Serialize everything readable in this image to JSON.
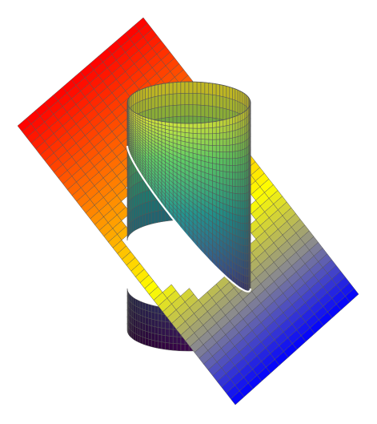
{
  "chart_data": {
    "type": "surface3d",
    "title": "",
    "xlabel": "",
    "ylabel": "",
    "zlabel": "",
    "axes_visible": false,
    "grid": false,
    "legend": "none",
    "surfaces": [
      {
        "shape": "cylinder",
        "colormap": "viridis",
        "colormap_by": "height",
        "colors": [
          "#440154",
          "#3b528b",
          "#21918c",
          "#5ec962",
          "#fde725"
        ],
        "edge_color": "#555555",
        "angular_segments": 48,
        "height_segments": 24,
        "cut_by": "inclined-plane",
        "cut_edge_color": "#ffffff"
      },
      {
        "shape": "inclined-plane",
        "colormap": "red-orange-yellow-gray-blue",
        "colormap_by": "height",
        "colors": [
          "#ff0000",
          "#ff5500",
          "#ffa500",
          "#ffff00",
          "#8c8c8c",
          "#0000ff"
        ],
        "edge_color": "#555555",
        "u_segments": 14,
        "v_segments": 48,
        "has_hole": true
      }
    ]
  }
}
